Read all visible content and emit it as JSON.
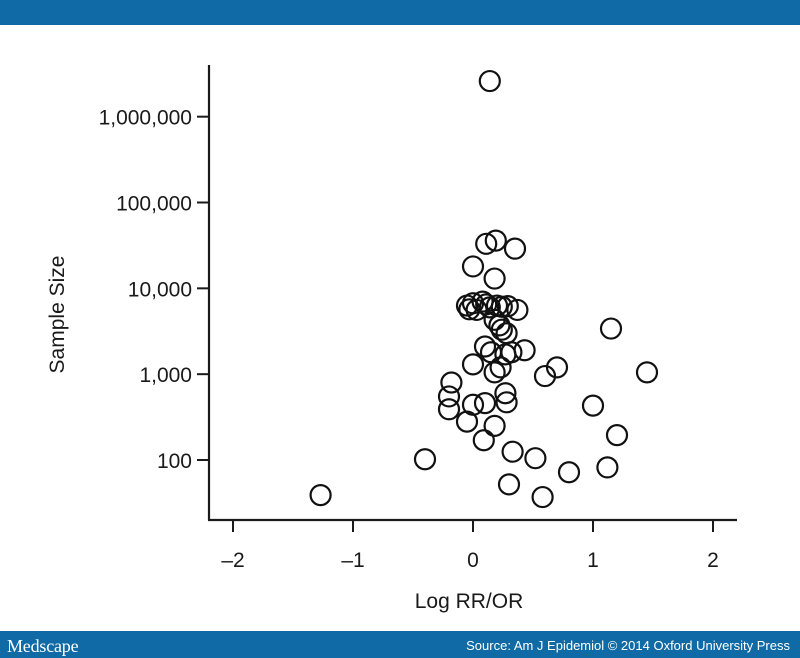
{
  "header": {},
  "footer": {
    "logo": "Medscape",
    "source": "Source: Am J Epidemiol © 2014 Oxford University Press"
  },
  "colors": {
    "bar": "#106aa5",
    "background": "#ffffff",
    "marker": "#111111"
  },
  "chart_data": {
    "type": "scatter",
    "title": "",
    "xlabel": "Log RR/OR",
    "ylabel": "Sample Size",
    "xlim": [
      -2.2,
      2.2
    ],
    "ylim": [
      20,
      4000000
    ],
    "yscale": "log",
    "x_ticks": [
      -2,
      -1,
      0,
      1,
      2
    ],
    "x_tick_labels": [
      "–2",
      "–1",
      "0",
      "1",
      "2"
    ],
    "y_ticks": [
      100,
      1000,
      10000,
      100000,
      1000000
    ],
    "y_tick_labels": [
      "100",
      "1,000",
      "10,000",
      "100,000",
      "1,000,000"
    ],
    "grid": false,
    "legend": "none",
    "marker": "open-circle",
    "series": [
      {
        "points": [
          {
            "x": 0.14,
            "y": 2600000
          },
          {
            "x": 0.11,
            "y": 33000
          },
          {
            "x": 0.19,
            "y": 36000
          },
          {
            "x": 0.35,
            "y": 29000
          },
          {
            "x": 0.0,
            "y": 18000
          },
          {
            "x": 0.18,
            "y": 13000
          },
          {
            "x": -0.05,
            "y": 6300
          },
          {
            "x": -0.03,
            "y": 5700
          },
          {
            "x": 0.0,
            "y": 6700
          },
          {
            "x": 0.03,
            "y": 5600
          },
          {
            "x": 0.08,
            "y": 7000
          },
          {
            "x": 0.11,
            "y": 6500
          },
          {
            "x": 0.14,
            "y": 6000
          },
          {
            "x": 0.2,
            "y": 6300
          },
          {
            "x": 0.24,
            "y": 6100
          },
          {
            "x": 0.29,
            "y": 6200
          },
          {
            "x": 0.37,
            "y": 5600
          },
          {
            "x": 0.18,
            "y": 4300
          },
          {
            "x": 0.22,
            "y": 3700
          },
          {
            "x": 0.24,
            "y": 3300
          },
          {
            "x": 0.28,
            "y": 3000
          },
          {
            "x": 0.1,
            "y": 2100
          },
          {
            "x": 0.15,
            "y": 1800
          },
          {
            "x": 0.27,
            "y": 1700
          },
          {
            "x": 0.32,
            "y": 1800
          },
          {
            "x": 0.43,
            "y": 1900
          },
          {
            "x": 0.0,
            "y": 1300
          },
          {
            "x": 0.23,
            "y": 1200
          },
          {
            "x": 0.18,
            "y": 1050
          },
          {
            "x": 0.7,
            "y": 1200
          },
          {
            "x": 0.6,
            "y": 950
          },
          {
            "x": 1.15,
            "y": 3400
          },
          {
            "x": 1.45,
            "y": 1050
          },
          {
            "x": -0.18,
            "y": 800
          },
          {
            "x": -0.2,
            "y": 550
          },
          {
            "x": 0.27,
            "y": 600
          },
          {
            "x": -0.2,
            "y": 390
          },
          {
            "x": 0.0,
            "y": 440
          },
          {
            "x": 0.1,
            "y": 460
          },
          {
            "x": 0.28,
            "y": 470
          },
          {
            "x": 1.0,
            "y": 430
          },
          {
            "x": -0.05,
            "y": 280
          },
          {
            "x": 0.18,
            "y": 250
          },
          {
            "x": 1.2,
            "y": 195
          },
          {
            "x": 0.09,
            "y": 170
          },
          {
            "x": 0.33,
            "y": 125
          },
          {
            "x": 0.52,
            "y": 105
          },
          {
            "x": -0.4,
            "y": 102
          },
          {
            "x": 0.8,
            "y": 72
          },
          {
            "x": 1.12,
            "y": 82
          },
          {
            "x": 0.3,
            "y": 52
          },
          {
            "x": 0.58,
            "y": 37
          },
          {
            "x": -1.27,
            "y": 39
          }
        ]
      }
    ]
  }
}
